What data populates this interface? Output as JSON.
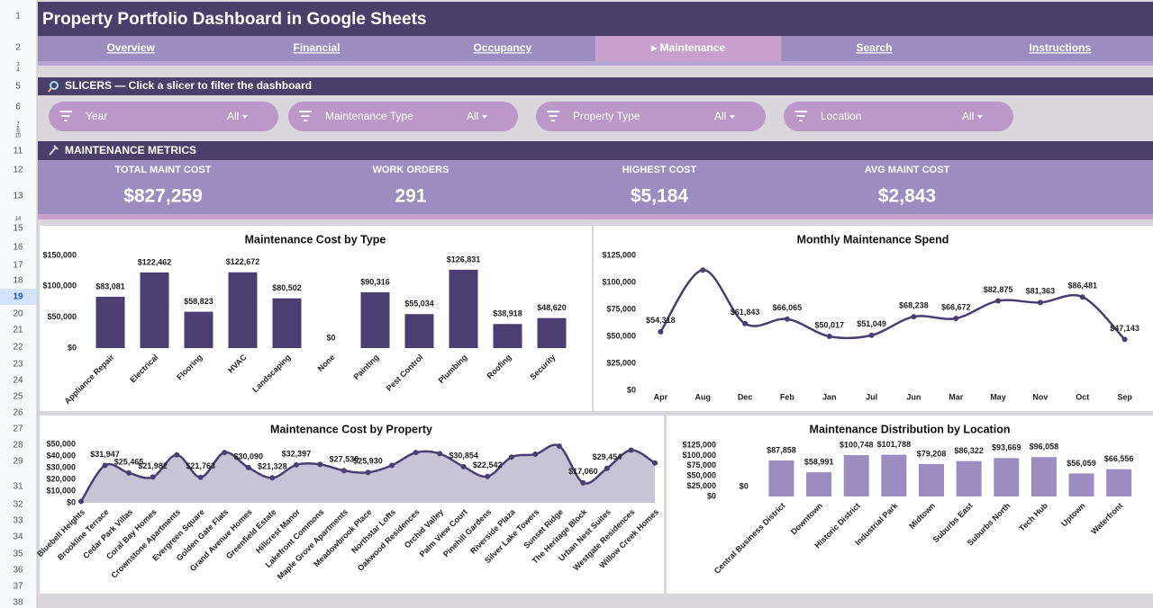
{
  "header": {
    "title": "Property Portfolio Dashboard in Google Sheets"
  },
  "tabs": [
    {
      "label": "Overview",
      "active": false
    },
    {
      "label": "Financial",
      "active": false
    },
    {
      "label": "Occupancy",
      "active": false
    },
    {
      "label": "▸ Maintenance",
      "active": true
    },
    {
      "label": "Search",
      "active": false
    },
    {
      "label": "Instructions",
      "active": false
    }
  ],
  "slicers": {
    "heading": "SLICERS — Click a slicer to filter the dashboard",
    "items": [
      {
        "label": "Year",
        "value": "All"
      },
      {
        "label": "Maintenance Type",
        "value": "All"
      },
      {
        "label": "Property Type",
        "value": "All"
      },
      {
        "label": "Location",
        "value": "All"
      }
    ]
  },
  "metrics": {
    "heading": "MAINTENANCE METRICS",
    "items": [
      {
        "label": "TOTAL MAINT COST",
        "value": "$827,259"
      },
      {
        "label": "WORK ORDERS",
        "value": "291"
      },
      {
        "label": "HIGHEST COST",
        "value": "$5,184"
      },
      {
        "label": "AVG MAINT COST",
        "value": "$2,843"
      }
    ]
  },
  "rows": [
    1,
    2,
    3,
    4,
    5,
    6,
    7,
    8,
    9,
    10,
    11,
    12,
    13,
    14,
    15,
    16,
    17,
    18,
    19,
    20,
    21,
    22,
    23,
    24,
    25,
    26,
    27,
    28,
    29,
    31,
    32,
    33,
    34,
    35,
    36,
    37,
    38
  ],
  "selected_row": 19,
  "chart_data": [
    {
      "type": "bar",
      "title": "Maintenance Cost by Type",
      "categories": [
        "Appliance Repair",
        "Electrical",
        "Flooring",
        "HVAC",
        "Landscaping",
        "None",
        "Painting",
        "Pest Control",
        "Plumbing",
        "Roofing",
        "Security"
      ],
      "values": [
        83081,
        122462,
        58823,
        122672,
        80502,
        0,
        90316,
        55034,
        126831,
        38918,
        48620
      ],
      "value_labels": [
        "$83,081",
        "$122,462",
        "$58,823",
        "$122,672",
        "$80,502",
        "$0",
        "$90,316",
        "$55,034",
        "$126,831",
        "$38,918",
        "$48,620"
      ],
      "color": "#4b3f72",
      "ylim": [
        0,
        150000
      ],
      "yticks": [
        {
          "value": 0,
          "label": "$0"
        },
        {
          "value": 50000,
          "label": "$50,000"
        },
        {
          "value": 100000,
          "label": "$100,000"
        },
        {
          "value": 150000,
          "label": "$150,000"
        }
      ],
      "grid": false
    },
    {
      "type": "line",
      "title": "Monthly Maintenance Spend",
      "categories": [
        "Apr",
        "Aug",
        "Dec",
        "Feb",
        "Jan",
        "Jul",
        "Jun",
        "Mar",
        "May",
        "Nov",
        "Oct",
        "Sep"
      ],
      "values": [
        54318,
        111500,
        61843,
        66065,
        50017,
        51049,
        68238,
        66672,
        82875,
        81363,
        86481,
        47143
      ],
      "value_labels": [
        "$54,318",
        null,
        "$61,843",
        "$66,065",
        "$50,017",
        "$51,049",
        "$68,238",
        "$66,672",
        "$82,875",
        "$81,363",
        "$86,481",
        "$47,143"
      ],
      "color": "#4b3f72",
      "ylim": [
        0,
        125000
      ],
      "yticks": [
        {
          "value": 0,
          "label": "$0"
        },
        {
          "value": 25000,
          "label": "$25,000"
        },
        {
          "value": 50000,
          "label": "$50,000"
        },
        {
          "value": 75000,
          "label": "$75,000"
        },
        {
          "value": 100000,
          "label": "$100,000"
        },
        {
          "value": 125000,
          "label": "$125,000"
        }
      ],
      "grid": false
    },
    {
      "type": "area",
      "title": "Maintenance Cost by Property",
      "categories": [
        "Bluebell Heights",
        "Brookline Terrace",
        "Cedar Park Villas",
        "Coral Bay Homes",
        "Crownstone Apartments",
        "Evergreen Square",
        "Golden Gate Flats",
        "Grand Avenue Homes",
        "Greenfield Estate",
        "Hillcrest Manor",
        "Lakefront Commons",
        "Maple Grove Apartments",
        "Meadowbrook Place",
        "Northstar Lofts",
        "Oakwood Residences",
        "Orchid Valley",
        "Palm View Court",
        "Pinehill Gardens",
        "Riverside Plaza",
        "Silver Lake Towers",
        "Sunset Ridge",
        "The Heritage Block",
        "Urban Nest Suites",
        "Westgate Residences",
        "Willow Creek Homes"
      ],
      "values": [
        1200,
        31947,
        25465,
        21982,
        41000,
        21763,
        43000,
        30090,
        21328,
        32397,
        32800,
        27530,
        25930,
        32000,
        43000,
        42000,
        30854,
        22542,
        39000,
        41500,
        48500,
        17060,
        29454,
        45000,
        34000
      ],
      "value_labels": [
        null,
        "$31,947",
        "$25,465",
        "$21,982",
        null,
        "$21,763",
        null,
        "$30,090",
        "$21,328",
        "$32,397",
        null,
        "$27,530",
        "$25,930",
        null,
        null,
        null,
        "$30,854",
        "$22,542",
        null,
        null,
        null,
        "$17,060",
        "$29,454",
        null,
        null
      ],
      "color": "#4b3f72",
      "area_color": "#c8c4d8",
      "ylim": [
        0,
        50000
      ],
      "yticks": [
        {
          "value": 0,
          "label": "$0"
        },
        {
          "value": 10000,
          "label": "$10,000"
        },
        {
          "value": 20000,
          "label": "$20,000"
        },
        {
          "value": 30000,
          "label": "$30,000"
        },
        {
          "value": 40000,
          "label": "$40,000"
        },
        {
          "value": 50000,
          "label": "$50,000"
        }
      ],
      "grid": false
    },
    {
      "type": "bar",
      "title": "Maintenance Distribution by Location",
      "categories": [
        null,
        "Central Business District",
        "Downtown",
        "Historic District",
        "Industrial Park",
        "Midtown",
        "Suburbs East",
        "Suburbs North",
        "Tech Hub",
        "Uptown",
        "Waterfront"
      ],
      "values": [
        0,
        87858,
        58991,
        100748,
        101788,
        79208,
        86322,
        93669,
        96058,
        56059,
        66556
      ],
      "value_labels": [
        "$0",
        "$87,858",
        "$58,991",
        "$100,748",
        "$101,788",
        "$79,208",
        "$86,322",
        "$93,669",
        "$96,058",
        "$56,059",
        "$66,556"
      ],
      "color": "#9b8dc0",
      "ylim": [
        0,
        125000
      ],
      "yticks": [
        {
          "value": 0,
          "label": "$0"
        },
        {
          "value": 25000,
          "label": "$25,000"
        },
        {
          "value": 50000,
          "label": "$50,000"
        },
        {
          "value": 75000,
          "label": "$75,000"
        },
        {
          "value": 100000,
          "label": "$100,000"
        },
        {
          "value": 125000,
          "label": "$125,000"
        }
      ],
      "grid": false
    }
  ]
}
